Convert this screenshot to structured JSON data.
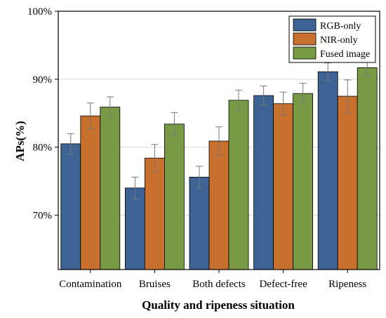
{
  "chart_data": {
    "type": "bar",
    "categories": [
      "Contamination",
      "Bruises",
      "Both defects",
      "Defect-free",
      "Ripeness"
    ],
    "series": [
      {
        "name": "RGB-only",
        "color": "#3d6394",
        "values": [
          80.5,
          74.0,
          75.6,
          87.6,
          91.1
        ],
        "errors": [
          1.5,
          1.6,
          1.6,
          1.4,
          1.3
        ]
      },
      {
        "name": "NIR-only",
        "color": "#c8702e",
        "values": [
          84.6,
          78.4,
          80.9,
          86.4,
          87.5
        ],
        "errors": [
          1.9,
          2.0,
          2.1,
          1.7,
          2.4
        ]
      },
      {
        "name": "Fused image",
        "color": "#789a45",
        "values": [
          85.9,
          83.4,
          86.9,
          87.9,
          91.7
        ],
        "errors": [
          1.5,
          1.7,
          1.5,
          1.5,
          1.2
        ]
      }
    ],
    "ylim": [
      62,
      100
    ],
    "yticks": [
      70,
      80,
      90,
      100
    ],
    "ytick_labels": [
      "70%",
      "80%",
      "90%",
      "100%"
    ],
    "xlabel": "Quality and ripeness situation",
    "ylabel": "APs(%)",
    "grid": "horizontal",
    "legend_position": "top-right"
  }
}
